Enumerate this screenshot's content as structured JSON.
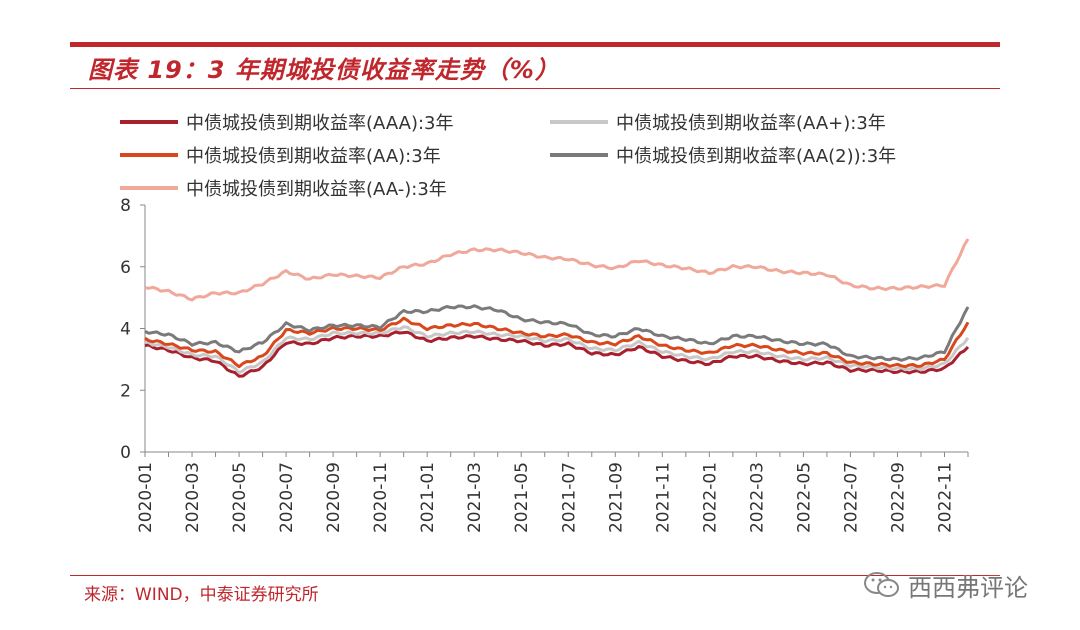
{
  "header": {
    "title": "图表 19：3 年期城投债收益率走势（%）"
  },
  "footer": {
    "source": "来源：WIND，中泰证券研究所"
  },
  "watermark": {
    "text": "西西弗评论",
    "icon": "wechat-icon"
  },
  "chart_data": {
    "type": "line",
    "x": [
      "2020-01",
      "2020-02",
      "2020-03",
      "2020-04",
      "2020-05",
      "2020-06",
      "2020-07",
      "2020-08",
      "2020-09",
      "2020-10",
      "2020-11",
      "2020-12",
      "2021-01",
      "2021-02",
      "2021-03",
      "2021-04",
      "2021-05",
      "2021-06",
      "2021-07",
      "2021-08",
      "2021-09",
      "2021-10",
      "2021-11",
      "2021-12",
      "2022-01",
      "2022-02",
      "2022-03",
      "2022-04",
      "2022-05",
      "2022-06",
      "2022-07",
      "2022-08",
      "2022-09",
      "2022-10",
      "2022-11",
      "2022-12"
    ],
    "x_tick_labels": [
      "2020-01",
      "2020-03",
      "2020-05",
      "2020-07",
      "2020-09",
      "2020-11",
      "2021-01",
      "2021-03",
      "2021-05",
      "2021-07",
      "2021-09",
      "2021-11",
      "2022-01",
      "2022-03",
      "2022-05",
      "2022-07",
      "2022-09",
      "2022-11"
    ],
    "y_ticks": [
      "0",
      "2",
      "4",
      "6",
      "8"
    ],
    "ylim": [
      0,
      8
    ],
    "grid": false,
    "legend_position": "top",
    "series": [
      {
        "name": "中债城投债到期收益率(AAA):3年",
        "color": "#a8202e",
        "values": [
          3.45,
          3.3,
          3.05,
          2.95,
          2.45,
          2.75,
          3.55,
          3.5,
          3.7,
          3.75,
          3.75,
          3.9,
          3.6,
          3.7,
          3.75,
          3.65,
          3.6,
          3.45,
          3.5,
          3.2,
          3.15,
          3.4,
          3.1,
          2.95,
          2.85,
          3.1,
          3.1,
          2.95,
          2.85,
          2.9,
          2.65,
          2.65,
          2.6,
          2.6,
          2.7,
          3.4
        ]
      },
      {
        "name": "中债城投债到期收益率(AA+):3年",
        "color": "#c8c8c8",
        "values": [
          3.55,
          3.4,
          3.15,
          3.1,
          2.6,
          2.9,
          3.7,
          3.65,
          3.85,
          3.85,
          3.85,
          4.05,
          3.75,
          3.85,
          3.9,
          3.8,
          3.75,
          3.6,
          3.65,
          3.35,
          3.3,
          3.55,
          3.25,
          3.1,
          3.0,
          3.25,
          3.25,
          3.1,
          3.0,
          3.05,
          2.8,
          2.75,
          2.7,
          2.7,
          2.85,
          3.7
        ]
      },
      {
        "name": "中债城投债到期收益率(AA):3年",
        "color": "#d9471c",
        "values": [
          3.65,
          3.5,
          3.3,
          3.25,
          2.8,
          3.1,
          3.95,
          3.85,
          4.0,
          4.0,
          3.95,
          4.3,
          4.0,
          4.1,
          4.15,
          4.0,
          3.85,
          3.75,
          3.8,
          3.55,
          3.5,
          3.75,
          3.45,
          3.3,
          3.2,
          3.45,
          3.45,
          3.3,
          3.2,
          3.2,
          2.9,
          2.85,
          2.8,
          2.8,
          3.0,
          4.2
        ]
      },
      {
        "name": "中债城投债到期收益率(AA(2)):3年",
        "color": "#7a7a7a",
        "values": [
          3.9,
          3.8,
          3.5,
          3.55,
          3.25,
          3.55,
          4.15,
          3.95,
          4.1,
          4.1,
          4.05,
          4.55,
          4.55,
          4.7,
          4.7,
          4.6,
          4.3,
          4.2,
          4.15,
          3.8,
          3.75,
          4.0,
          3.75,
          3.65,
          3.5,
          3.75,
          3.75,
          3.6,
          3.5,
          3.5,
          3.1,
          3.05,
          3.0,
          3.05,
          3.25,
          4.7
        ]
      },
      {
        "name": "中债城投债到期收益率(AA-):3年",
        "color": "#f0a89a",
        "values": [
          5.35,
          5.2,
          4.95,
          5.15,
          5.15,
          5.45,
          5.85,
          5.6,
          5.75,
          5.7,
          5.65,
          6.0,
          6.1,
          6.4,
          6.55,
          6.55,
          6.45,
          6.3,
          6.25,
          6.05,
          5.95,
          6.2,
          6.05,
          5.95,
          5.8,
          6.0,
          6.0,
          5.85,
          5.8,
          5.75,
          5.4,
          5.3,
          5.3,
          5.35,
          5.4,
          6.9
        ]
      }
    ]
  }
}
